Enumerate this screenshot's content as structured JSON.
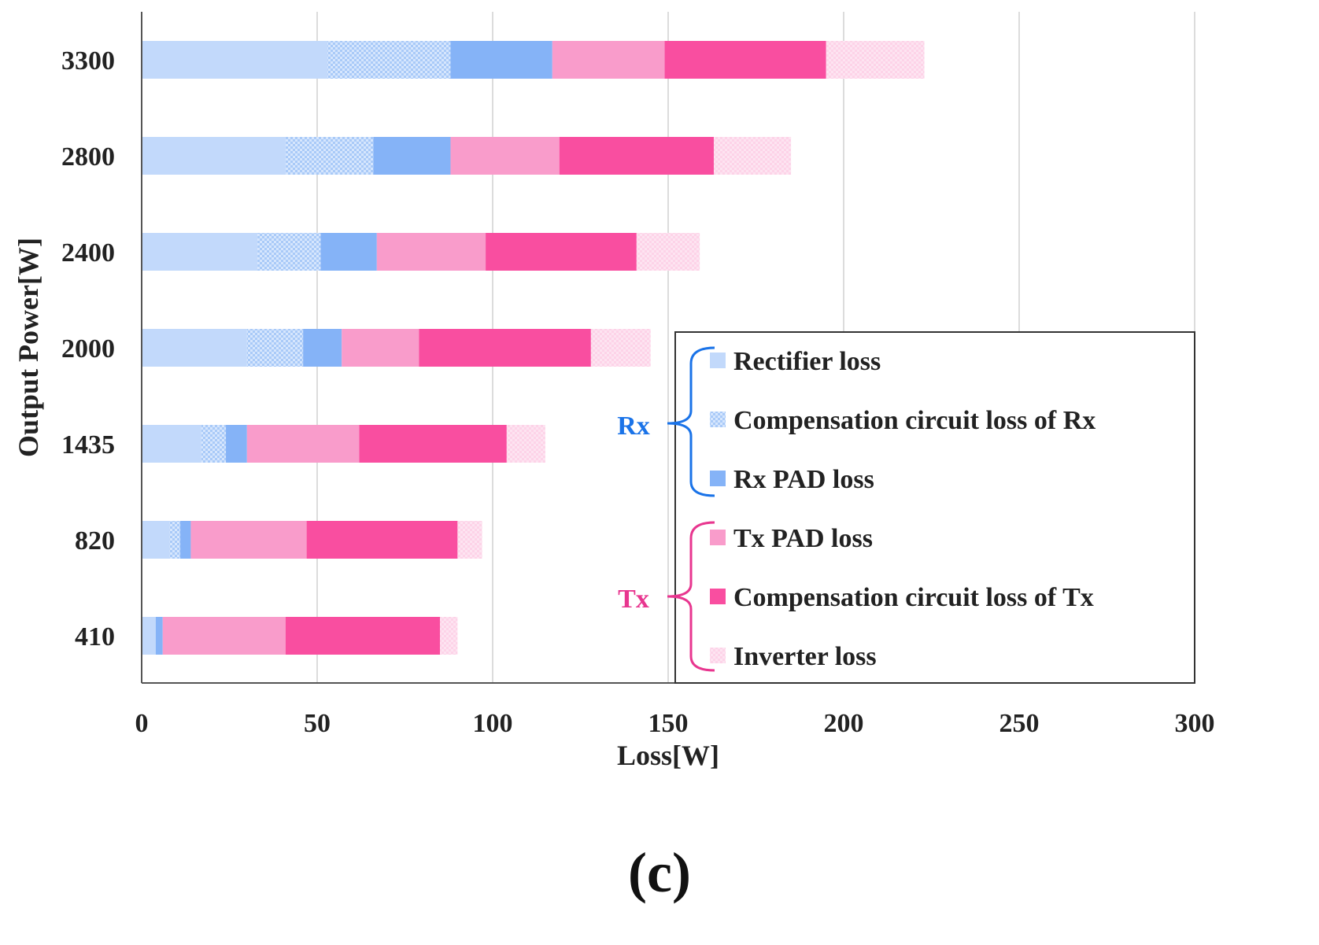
{
  "chart_data": {
    "type": "bar",
    "orientation": "horizontal",
    "stacked": true,
    "xlabel": "Loss[W]",
    "ylabel": "Output Power[W]",
    "xlim": [
      0,
      300
    ],
    "xticks": [
      0,
      50,
      100,
      150,
      200,
      250,
      300
    ],
    "grid": "vertical",
    "categories": [
      "410",
      "820",
      "1435",
      "2000",
      "2400",
      "2800",
      "3300"
    ],
    "series": [
      {
        "name": "Rectifier loss",
        "group": "Rx",
        "color": "#c2d9fb",
        "pattern": "none",
        "values": [
          4,
          8,
          17,
          30,
          33,
          41,
          53
        ]
      },
      {
        "name": "Compensation circuit loss of Rx",
        "group": "Rx",
        "color": "#a9caf8",
        "pattern": "grid",
        "values": [
          0,
          3,
          7,
          16,
          18,
          25,
          35
        ]
      },
      {
        "name": "Rx PAD loss",
        "group": "Rx",
        "color": "#85b3f7",
        "pattern": "none",
        "values": [
          2,
          3,
          6,
          11,
          16,
          22,
          29
        ]
      },
      {
        "name": "Tx PAD loss",
        "group": "Tx",
        "color": "#f99ccb",
        "pattern": "none",
        "values": [
          35,
          33,
          32,
          22,
          31,
          31,
          32
        ]
      },
      {
        "name": "Compensation circuit loss of Tx",
        "group": "Tx",
        "color": "#f94ea0",
        "pattern": "none",
        "values": [
          44,
          43,
          42,
          49,
          43,
          44,
          46
        ]
      },
      {
        "name": "Inverter loss",
        "group": "Tx",
        "color": "#fdd3e8",
        "pattern": "fine",
        "values": [
          5,
          7,
          11,
          17,
          18,
          22,
          28
        ]
      }
    ],
    "legend": {
      "position": "bottom-right",
      "groups": [
        {
          "label": "Rx",
          "color": "#1a73e8"
        },
        {
          "label": "Tx",
          "color": "#e8368f"
        }
      ]
    }
  },
  "panel_label": "(c)"
}
